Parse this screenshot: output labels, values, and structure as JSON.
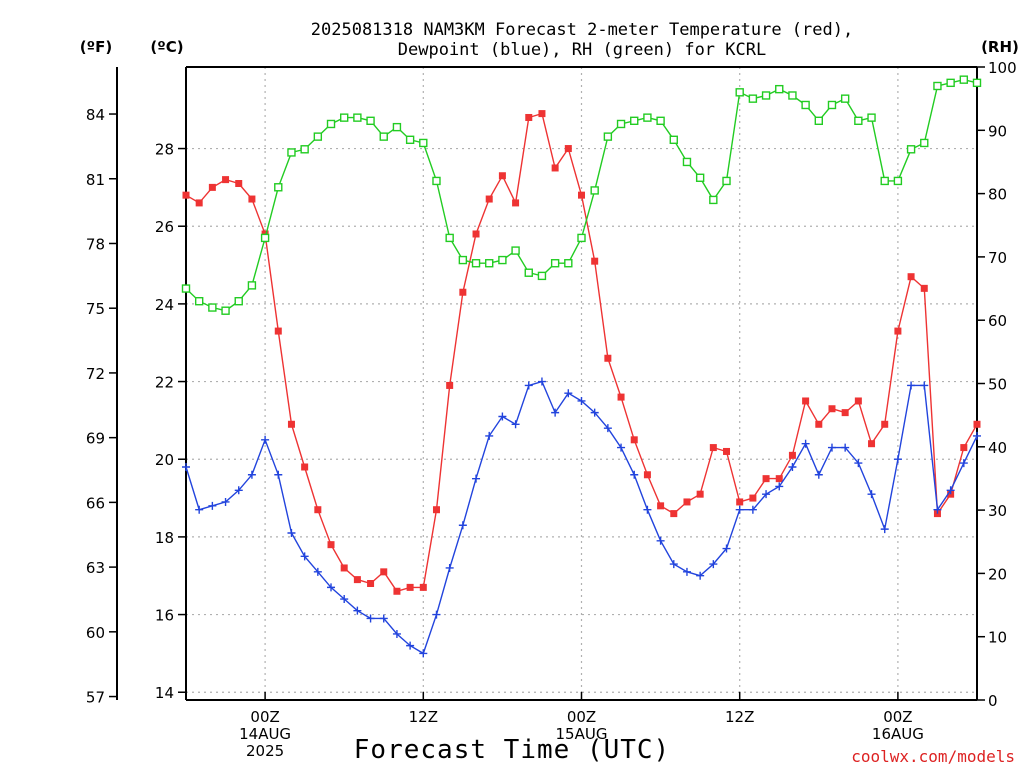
{
  "header": {
    "title_line1": "2025081318 NAM3KM Forecast 2-meter Temperature (red),",
    "title_line2": "Dewpoint (blue), RH (green) for KCRL"
  },
  "units": {
    "fahrenheit": "(ºF)",
    "celsius": "(ºC)",
    "rh": "(RH)"
  },
  "footer": {
    "xlabel": "Forecast Time (UTC)",
    "credit": "coolwx.com/models"
  },
  "chart_data": {
    "type": "line",
    "x_unit": "forecast hour (one per hour, starting 18Z 13 AUG 2025)",
    "x_ticks": [
      {
        "hour": 6,
        "lines": [
          "00Z",
          "14AUG",
          "2025"
        ]
      },
      {
        "hour": 18,
        "lines": [
          "12Z"
        ]
      },
      {
        "hour": 30,
        "lines": [
          "00Z",
          "15AUG"
        ]
      },
      {
        "hour": 42,
        "lines": [
          "12Z"
        ]
      },
      {
        "hour": 54,
        "lines": [
          "00Z",
          "16AUG"
        ]
      }
    ],
    "axes": {
      "celsius": {
        "range": [
          13.8,
          30.1
        ],
        "ticks": [
          14,
          16,
          18,
          20,
          22,
          24,
          26,
          28
        ]
      },
      "fahrenheit": {
        "ticks": [
          57,
          60,
          63,
          66,
          69,
          72,
          75,
          78,
          81,
          84
        ]
      },
      "rh": {
        "range": [
          0,
          100
        ],
        "ticks": [
          0,
          10,
          20,
          30,
          40,
          50,
          60,
          70,
          80,
          90,
          100
        ]
      }
    },
    "series": [
      {
        "name": "2-meter Temperature",
        "axis": "celsius",
        "color": "#ee3333",
        "marker": "filled-square",
        "values": [
          26.8,
          26.6,
          27.0,
          27.2,
          27.1,
          26.7,
          25.8,
          23.3,
          20.9,
          19.8,
          18.7,
          17.8,
          17.2,
          16.9,
          16.8,
          17.1,
          16.6,
          16.7,
          16.7,
          18.7,
          21.9,
          24.3,
          25.8,
          26.7,
          27.3,
          26.6,
          28.8,
          28.9,
          27.5,
          28.0,
          26.8,
          25.1,
          22.6,
          21.6,
          20.5,
          19.6,
          18.8,
          18.6,
          18.9,
          19.1,
          20.3,
          20.2,
          18.9,
          19.0,
          19.5,
          19.5,
          20.1,
          21.5,
          20.9,
          21.3,
          21.2,
          21.5,
          20.4,
          20.9,
          23.3,
          24.7,
          24.4,
          18.6,
          19.1,
          20.3,
          20.9
        ]
      },
      {
        "name": "Dewpoint",
        "axis": "celsius",
        "color": "#2244dd",
        "marker": "plus",
        "values": [
          19.8,
          18.7,
          18.8,
          18.9,
          19.2,
          19.6,
          20.5,
          19.6,
          18.1,
          17.5,
          17.1,
          16.7,
          16.4,
          16.1,
          15.9,
          15.9,
          15.5,
          15.2,
          15.0,
          16.0,
          17.2,
          18.3,
          19.5,
          20.6,
          21.1,
          20.9,
          21.9,
          22.0,
          21.2,
          21.7,
          21.5,
          21.2,
          20.8,
          20.3,
          19.6,
          18.7,
          17.9,
          17.3,
          17.1,
          17.0,
          17.3,
          17.7,
          18.7,
          18.7,
          19.1,
          19.3,
          19.8,
          20.4,
          19.6,
          20.3,
          20.3,
          19.9,
          19.1,
          18.2,
          20.0,
          21.9,
          21.9,
          18.7,
          19.2,
          19.9,
          20.6
        ]
      },
      {
        "name": "RH",
        "axis": "rh",
        "color": "#22cc22",
        "marker": "open-square",
        "values": [
          65,
          63,
          62,
          61.5,
          63,
          65.5,
          73,
          81,
          86.5,
          87,
          89,
          91,
          92,
          92,
          91.5,
          89,
          90.5,
          88.5,
          88,
          82,
          73,
          69.5,
          69,
          69,
          69.5,
          71,
          67.5,
          67,
          69,
          69,
          73,
          80.5,
          89,
          91,
          91.5,
          92,
          91.5,
          88.5,
          85,
          82.5,
          79,
          82,
          96,
          95,
          95.5,
          96.5,
          95.5,
          94,
          91.5,
          94,
          95,
          91.5,
          92,
          82,
          82,
          87,
          88,
          97,
          97.5,
          98,
          97.5
        ]
      }
    ],
    "grid": true,
    "legend": "none (series named in title)"
  }
}
